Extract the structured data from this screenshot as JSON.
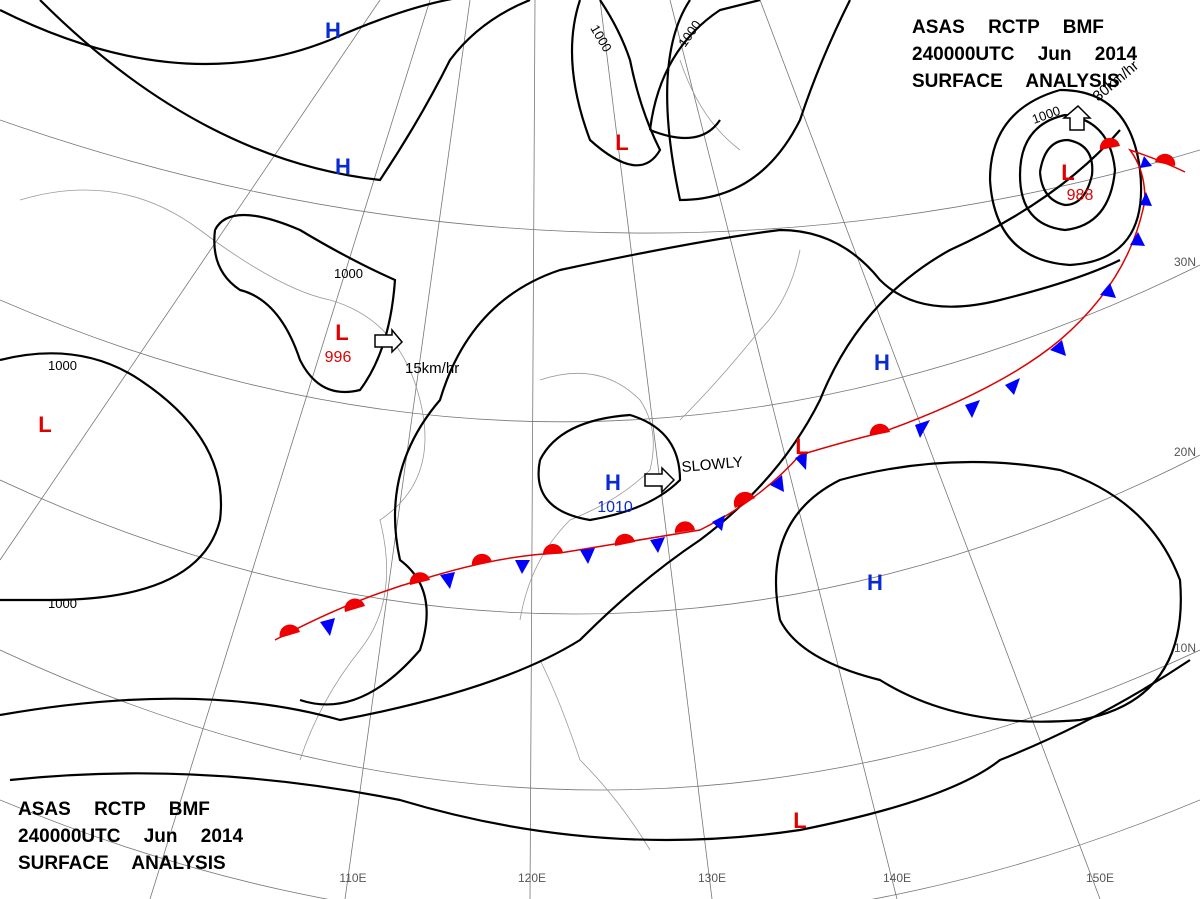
{
  "header": {
    "lines": [
      "ASAS RCTP BMF",
      "240000UTC Jun 2014",
      "SURFACE ANALYSIS"
    ]
  },
  "footer": {
    "lines": [
      "ASAS RCTP BMF",
      "240000UTC Jun 2014",
      "SURFACE ANALYSIS"
    ]
  },
  "systems": [
    {
      "label": "H"
    },
    {
      "label": "H"
    },
    {
      "label": "L"
    },
    {
      "label": "L",
      "pressure": 996
    },
    {
      "label": "L"
    },
    {
      "label": "H",
      "pressure": 1010
    },
    {
      "label": "H"
    },
    {
      "label": "H"
    },
    {
      "label": "L",
      "pressure": 988
    },
    {
      "label": "L"
    },
    {
      "label": "L"
    }
  ],
  "isobar_labels": [
    1000,
    1000,
    1000,
    1000,
    1000,
    1000
  ],
  "motions": [
    "15km/hr",
    "SLOWLY",
    "30km/hr"
  ],
  "longitudes": [
    "110E",
    "120E",
    "130E",
    "140E",
    "150E"
  ],
  "latitudes": [
    "30N",
    "20N",
    "10N"
  ]
}
